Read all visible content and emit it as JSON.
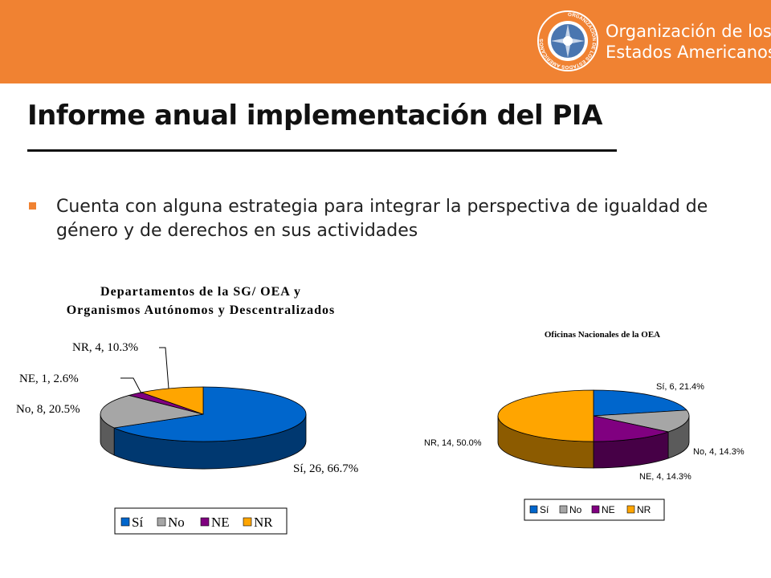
{
  "header": {
    "org_name_line1": "Organización de los",
    "org_name_line2": "Estados Americanos",
    "seal_icon": "oas-seal-icon",
    "seal_text": "ORGANIZACIÓN DE LOS ESTADOS AMERICANOS"
  },
  "colors": {
    "header": "#f08232",
    "si": "#0066cc",
    "no": "#a6a6a6",
    "ne": "#800080",
    "nr": "#ffa500"
  },
  "page": {
    "title": "Informe anual implementación del PIA",
    "bullet": "Cuenta con alguna estrategia para integrar la perspectiva de igualdad de género y de derechos en sus actividades"
  },
  "chart_data": [
    {
      "type": "pie",
      "title_line1": "Departamentos de la SG/ OEA y",
      "title_line2": "Organismos Autónomos y Descentralizados",
      "categories": [
        "Sí",
        "No",
        "NE",
        "NR"
      ],
      "values": [
        26,
        8,
        1,
        4
      ],
      "percents": [
        66.7,
        20.5,
        2.6,
        10.3
      ],
      "data_labels": [
        "Sí, 26, 66.7%",
        "No, 8, 20.5%",
        "NE, 1, 2.6%",
        "NR, 4, 10.3%"
      ],
      "legend": [
        "Sí",
        "No",
        "NE",
        "NR"
      ],
      "legend_position": "bottom"
    },
    {
      "type": "pie",
      "title": "Oficinas Nacionales de la OEA",
      "categories": [
        "Sí",
        "No",
        "NE",
        "NR"
      ],
      "values": [
        6,
        4,
        4,
        14
      ],
      "percents": [
        21.4,
        14.3,
        14.3,
        50.0
      ],
      "data_labels": [
        "Sí, 6, 21.4%",
        "No, 4, 14.3%",
        "NE, 4, 14.3%",
        "NR, 14, 50.0%"
      ],
      "legend": [
        "Sí",
        "No",
        "NE",
        "NR"
      ],
      "legend_position": "bottom"
    }
  ]
}
